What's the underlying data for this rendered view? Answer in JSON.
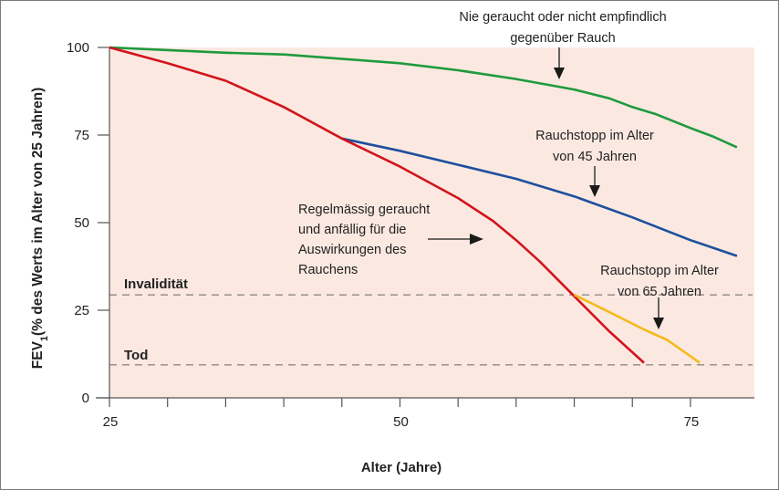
{
  "chart_data": {
    "type": "line",
    "xlabel": "Alter (Jahre)",
    "ylabel_main": "FEV",
    "ylabel_sub": "1",
    "ylabel_rest": "(% des Werts im Alter von 25 Jahren)",
    "xlim": [
      25,
      80.5
    ],
    "ylim": [
      0,
      100
    ],
    "xticks": [
      25,
      30,
      35,
      40,
      45,
      50,
      55,
      60,
      65,
      70,
      75
    ],
    "xtick_labels": {
      "25": "25",
      "50": "50",
      "75": "75"
    },
    "yticks": [
      0,
      25,
      50,
      75,
      100
    ],
    "ytick_labels": [
      "0",
      "25",
      "50",
      "75",
      "100"
    ],
    "background": "#fbe9e1",
    "reference_lines": [
      {
        "label": "Invalidität",
        "y": 29.4
      },
      {
        "label": "Tod",
        "y": 9.4
      }
    ],
    "series": [
      {
        "name": "Nie geraucht oder nicht empfindlich gegenüber Rauch",
        "color": "#1f9a3e",
        "x": [
          25,
          35,
          40,
          50,
          55,
          60,
          65,
          68,
          70,
          72,
          75,
          77,
          79
        ],
        "y": [
          100,
          98.5,
          98,
          95.5,
          93.5,
          91,
          88,
          85.5,
          83,
          81,
          77,
          74.5,
          71.5
        ]
      },
      {
        "name": "Rauchstopp im Alter von 45 Jahren",
        "color": "#1e4f9e",
        "x": [
          45,
          50,
          55,
          60,
          65,
          70,
          75,
          79
        ],
        "y": [
          74,
          70.5,
          66.5,
          62.5,
          57.5,
          51.5,
          45,
          40.5
        ]
      },
      {
        "name": "Regelmässig geraucht und anfällig für die Auswirkungen des Rauchens",
        "color": "#d3141c",
        "x": [
          25,
          30,
          35,
          40,
          45,
          50,
          55,
          58,
          60,
          62,
          65,
          68,
          71
        ],
        "y": [
          100,
          95.5,
          90.5,
          83,
          74,
          66,
          57,
          50.5,
          45,
          39,
          29,
          19,
          10
        ]
      },
      {
        "name": "Rauchstopp im Alter von 65 Jahren",
        "color": "#f5b91a",
        "x": [
          65,
          68,
          71,
          73,
          75.8
        ],
        "y": [
          29.4,
          24.5,
          19.5,
          16.5,
          10
        ]
      }
    ],
    "annotations": {
      "never": [
        "Nie geraucht oder nicht empfindlich",
        "gegenüber Rauch"
      ],
      "stop45": [
        "Rauchstopp im Alter",
        "von 45 Jahren"
      ],
      "smoker": [
        "Regelmässig geraucht",
        "und anfällig für die",
        "Auswirkungen des",
        "Rauchens"
      ],
      "stop65": [
        "Rauchstopp im Alter",
        "von 65 Jahren"
      ]
    }
  }
}
